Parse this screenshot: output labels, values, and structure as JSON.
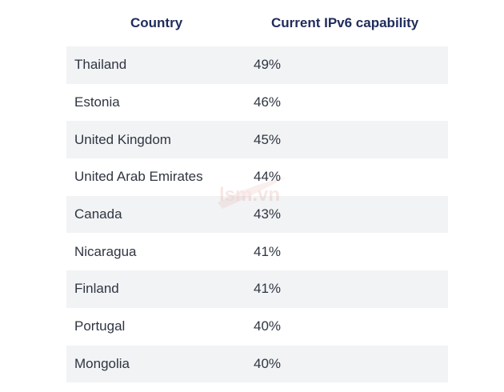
{
  "table": {
    "headers": [
      "Country",
      "Current IPv6 capability"
    ],
    "rows": [
      {
        "country": "Thailand",
        "value": "49%"
      },
      {
        "country": "Estonia",
        "value": "46%"
      },
      {
        "country": "United Kingdom",
        "value": "45%"
      },
      {
        "country": "United Arab Emirates",
        "value": "44%"
      },
      {
        "country": "Canada",
        "value": "43%"
      },
      {
        "country": "Nicaragua",
        "value": "41%"
      },
      {
        "country": "Finland",
        "value": "41%"
      },
      {
        "country": "Portugal",
        "value": "40%"
      },
      {
        "country": "Mongolia",
        "value": "40%"
      }
    ]
  },
  "colors": {
    "header_text": "#1f2c5c",
    "body_text": "#2f3542",
    "row_shade": "#f2f3f5",
    "watermark": "#c0392b"
  },
  "watermark": {
    "text": "lsm.vn"
  }
}
